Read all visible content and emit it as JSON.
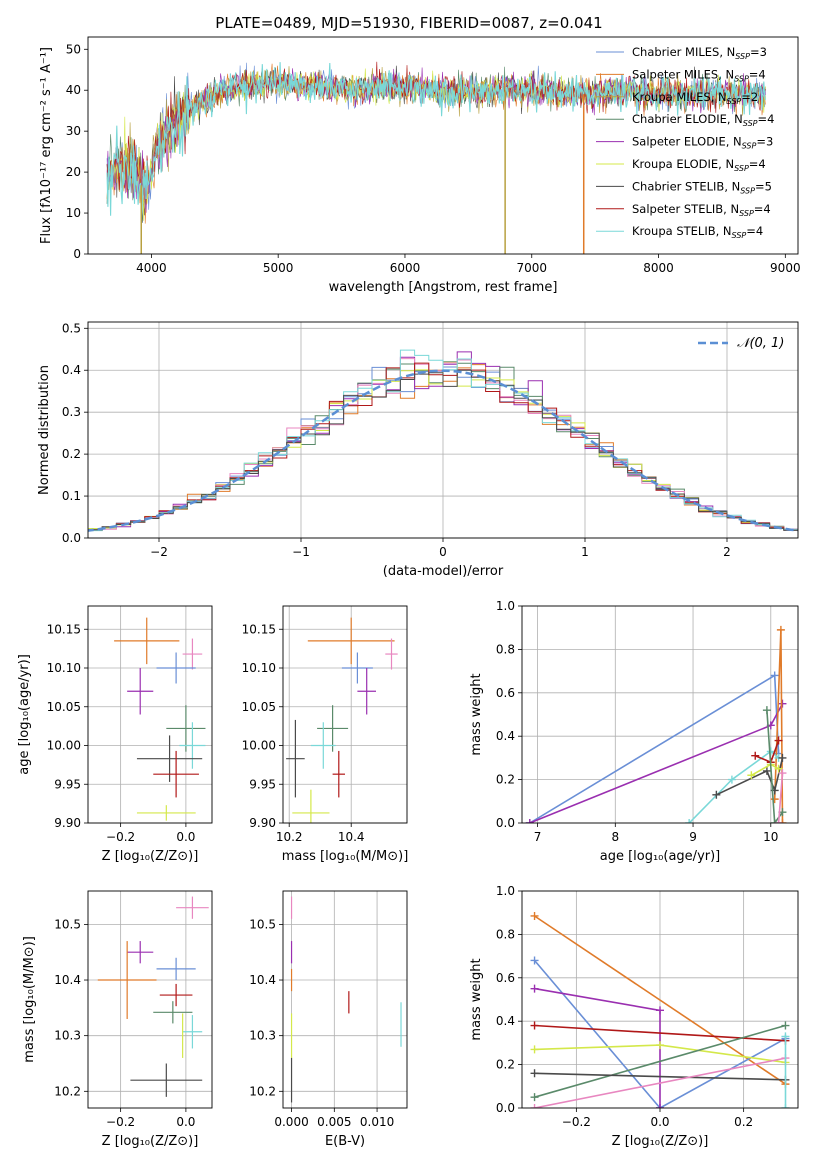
{
  "figure": {
    "title": "PLATE=0489, MJD=51930, FIBERID=0087, z=0.041"
  },
  "colors": {
    "Chabrier MILES": "#6a8fd6",
    "Salpeter MILES": "#e07b2a",
    "Kroupa MILES": "#b8a040",
    "Chabrier ELODIE": "#5a8a6a",
    "Salpeter ELODIE": "#9a2fb0",
    "Kroupa ELODIE": "#d4e84a",
    "Chabrier STELIB": "#4a4a4a",
    "Salpeter STELIB": "#b01818",
    "Kroupa STELIB": "#7ad8d8",
    "pink": "#e887c0",
    "gaussian": "#5b8fd4"
  },
  "chart_data": [
    {
      "id": "spectrum",
      "type": "line",
      "xlabel": "wavelength [Angstrom, rest frame]",
      "ylabel": "Flux [fλ10⁻¹⁷ erg cm⁻² s⁻¹ A⁻¹]",
      "xlim": [
        3500,
        9100
      ],
      "ylim": [
        0,
        53
      ],
      "xticks": [
        4000,
        5000,
        6000,
        7000,
        8000,
        9000
      ],
      "yticks": [
        0,
        10,
        20,
        30,
        40,
        50
      ],
      "legend": [
        "Chabrier MILES, N_SSP=3",
        "Salpeter MILES, N_SSP=4",
        "Kroupa MILES, N_SSP=2",
        "Chabrier ELODIE, N_SSP=4",
        "Salpeter ELODIE, N_SSP=3",
        "Kroupa ELODIE, N_SSP=4",
        "Chabrier STELIB, N_SSP=5",
        "Salpeter STELIB, N_SSP=4",
        "Kroupa STELIB, N_SSP=4"
      ],
      "legend_colors": [
        "#6a8fd6",
        "#e07b2a",
        "#b8a040",
        "#5a8a6a",
        "#9a2fb0",
        "#d4e84a",
        "#4a4a4a",
        "#b01818",
        "#7ad8d8"
      ],
      "continuum": {
        "x": [
          3650,
          3750,
          3850,
          3950,
          4050,
          4150,
          4300,
          4500,
          4700,
          5000,
          5300,
          5600,
          5900,
          6200,
          6500,
          6800,
          7100,
          7400,
          7700,
          8000,
          8300,
          8600,
          8850
        ],
        "y": [
          20,
          22,
          21,
          15,
          27,
          31,
          35,
          39,
          41,
          42,
          41,
          40,
          41,
          40,
          39.5,
          40,
          40,
          39,
          40,
          39,
          39,
          39,
          39
        ]
      },
      "drops": [
        {
          "x": 3920,
          "y_to": 0,
          "color": "#b8a040"
        },
        {
          "x": 6790,
          "y_to": 0,
          "color": "#b8a040"
        },
        {
          "x": 7410,
          "y_to": 0,
          "color": "#e07b2a"
        }
      ]
    },
    {
      "id": "residuals",
      "type": "line",
      "xlabel": "(data-model)/error",
      "ylabel": "Normed distribution",
      "xlim": [
        -2.5,
        2.5
      ],
      "ylim": [
        0,
        0.515
      ],
      "xticks": [
        -2,
        -1,
        0,
        1,
        2
      ],
      "yticks": [
        0.0,
        0.1,
        0.2,
        0.3,
        0.4,
        0.5
      ],
      "legend": [
        "𝒩(0, 1)"
      ],
      "bin_width": 0.1
    },
    {
      "id": "age_vs_Z",
      "type": "scatter",
      "xlabel": "Z [log₁₀(Z/Z⊙)]",
      "ylabel": "age  [log₁₀(age/yr)]",
      "xlim": [
        -0.3,
        0.08
      ],
      "ylim": [
        9.9,
        10.18
      ],
      "xticks": [
        -0.2,
        0.0
      ],
      "yticks": [
        9.9,
        9.95,
        10.0,
        10.05,
        10.1,
        10.15
      ],
      "points": [
        {
          "x": -0.12,
          "y": 10.135,
          "dx": 0.1,
          "dy": 0.03,
          "color": "#e07b2a"
        },
        {
          "x": 0.02,
          "y": 10.118,
          "dx": 0.03,
          "dy": 0.02,
          "color": "#e887c0"
        },
        {
          "x": -0.03,
          "y": 10.1,
          "dx": 0.06,
          "dy": 0.02,
          "color": "#6a8fd6"
        },
        {
          "x": -0.14,
          "y": 10.07,
          "dx": 0.04,
          "dy": 0.03,
          "color": "#9a2fb0"
        },
        {
          "x": 0.0,
          "y": 10.022,
          "dx": 0.06,
          "dy": 0.03,
          "color": "#5a8a6a"
        },
        {
          "x": 0.02,
          "y": 10.0,
          "dx": 0.04,
          "dy": 0.03,
          "color": "#7ad8d8"
        },
        {
          "x": -0.05,
          "y": 9.983,
          "dx": 0.1,
          "dy": 0.03,
          "color": "#4a4a4a"
        },
        {
          "x": -0.03,
          "y": 9.963,
          "dx": 0.07,
          "dy": 0.03,
          "color": "#b01818"
        },
        {
          "x": -0.06,
          "y": 9.913,
          "dx": 0.09,
          "dy": 0.01,
          "color": "#d4e84a"
        }
      ]
    },
    {
      "id": "age_vs_mass",
      "type": "scatter",
      "xlabel": "mass [log₁₀(M/M⊙)]",
      "ylabel": "",
      "xlim": [
        10.18,
        10.58
      ],
      "ylim": [
        9.9,
        10.18
      ],
      "xticks": [
        10.2,
        10.4
      ],
      "yticks": [
        9.9,
        9.95,
        10.0,
        10.05,
        10.1,
        10.15
      ],
      "points": [
        {
          "x": 10.4,
          "y": 10.135,
          "dx": 0.14,
          "dy": 0.03,
          "color": "#e07b2a"
        },
        {
          "x": 10.53,
          "y": 10.118,
          "dx": 0.02,
          "dy": 0.02,
          "color": "#e887c0"
        },
        {
          "x": 10.42,
          "y": 10.1,
          "dx": 0.05,
          "dy": 0.02,
          "color": "#6a8fd6"
        },
        {
          "x": 10.45,
          "y": 10.07,
          "dx": 0.03,
          "dy": 0.03,
          "color": "#9a2fb0"
        },
        {
          "x": 10.34,
          "y": 10.022,
          "dx": 0.05,
          "dy": 0.03,
          "color": "#5a8a6a"
        },
        {
          "x": 10.31,
          "y": 10.0,
          "dx": 0.04,
          "dy": 0.03,
          "color": "#7ad8d8"
        },
        {
          "x": 10.22,
          "y": 9.983,
          "dx": 0.03,
          "dy": 0.05,
          "color": "#4a4a4a"
        },
        {
          "x": 10.36,
          "y": 9.963,
          "dx": 0.02,
          "dy": 0.03,
          "color": "#b01818"
        },
        {
          "x": 10.27,
          "y": 9.913,
          "dx": 0.06,
          "dy": 0.03,
          "color": "#d4e84a"
        }
      ]
    },
    {
      "id": "weight_vs_age",
      "type": "line",
      "xlabel": "age  [log₁₀(age/yr)]",
      "ylabel": "mass weight",
      "xlim": [
        6.8,
        10.35
      ],
      "ylim": [
        0,
        1.0
      ],
      "xticks": [
        7,
        8,
        9,
        10
      ],
      "yticks": [
        0.0,
        0.2,
        0.4,
        0.6,
        0.8,
        1.0
      ],
      "series": [
        {
          "color": "#6a8fd6",
          "x": [
            6.9,
            10.05,
            10.1
          ],
          "y": [
            0.0,
            0.68,
            0.32
          ]
        },
        {
          "color": "#9a2fb0",
          "x": [
            6.9,
            10.0,
            10.15
          ],
          "y": [
            0.0,
            0.45,
            0.55
          ]
        },
        {
          "color": "#e07b2a",
          "x": [
            10.05,
            10.13,
            10.15
          ],
          "y": [
            0.11,
            0.89,
            0.0
          ]
        },
        {
          "color": "#7ad8d8",
          "x": [
            8.95,
            9.5,
            10.0,
            10.1
          ],
          "y": [
            0.0,
            0.2,
            0.33,
            0.3
          ]
        },
        {
          "color": "#4a4a4a",
          "x": [
            9.3,
            9.95,
            10.05,
            10.15
          ],
          "y": [
            0.13,
            0.24,
            0.15,
            0.3
          ]
        },
        {
          "color": "#b01818",
          "x": [
            9.8,
            10.0,
            10.1
          ],
          "y": [
            0.31,
            0.28,
            0.38
          ]
        },
        {
          "color": "#d4e84a",
          "x": [
            9.75,
            10.0,
            10.1
          ],
          "y": [
            0.22,
            0.27,
            0.25
          ]
        },
        {
          "color": "#5a8a6a",
          "x": [
            9.95,
            10.05,
            10.15
          ],
          "y": [
            0.52,
            0.0,
            0.05
          ]
        },
        {
          "color": "#e887c0",
          "x": [
            10.1,
            10.15
          ],
          "y": [
            0.0,
            0.23
          ]
        }
      ]
    },
    {
      "id": "mass_vs_Z",
      "type": "scatter",
      "xlabel": "Z [log₁₀(Z/Z⊙)]",
      "ylabel": "mass [log₁₀(M/M⊙)]",
      "xlim": [
        -0.3,
        0.08
      ],
      "ylim": [
        10.17,
        10.56
      ],
      "xticks": [
        -0.2,
        0.0
      ],
      "yticks": [
        10.2,
        10.3,
        10.4,
        10.5
      ],
      "points": [
        {
          "x": 0.02,
          "y": 10.53,
          "dx": 0.05,
          "dy": 0.02,
          "color": "#e887c0"
        },
        {
          "x": -0.14,
          "y": 10.45,
          "dx": 0.04,
          "dy": 0.02,
          "color": "#9a2fb0"
        },
        {
          "x": -0.03,
          "y": 10.42,
          "dx": 0.06,
          "dy": 0.02,
          "color": "#6a8fd6"
        },
        {
          "x": -0.18,
          "y": 10.4,
          "dx": 0.09,
          "dy": 0.07,
          "color": "#e07b2a"
        },
        {
          "x": -0.03,
          "y": 10.373,
          "dx": 0.05,
          "dy": 0.02,
          "color": "#b01818"
        },
        {
          "x": -0.04,
          "y": 10.342,
          "dx": 0.06,
          "dy": 0.02,
          "color": "#5a8a6a"
        },
        {
          "x": 0.02,
          "y": 10.307,
          "dx": 0.03,
          "dy": 0.03,
          "color": "#7ad8d8"
        },
        {
          "x": -0.06,
          "y": 10.22,
          "dx": 0.11,
          "dy": 0.03,
          "color": "#4a4a4a"
        },
        {
          "x": -0.01,
          "y": 10.3,
          "dx": 0.0,
          "dy": 0.04,
          "color": "#d4e84a"
        }
      ]
    },
    {
      "id": "mass_vs_EBV",
      "type": "scatter",
      "xlabel": "E(B-V)",
      "ylabel": "",
      "xlim": [
        -0.001,
        0.0135
      ],
      "ylim": [
        10.17,
        10.56
      ],
      "xticks": [
        0.0,
        0.005,
        0.01
      ],
      "xticklabels": [
        "0.000",
        "0.005",
        "0.010"
      ],
      "yticks": [
        10.2,
        10.3,
        10.4,
        10.5
      ],
      "points": [
        {
          "x": 0.0,
          "y": 10.53,
          "dx": 0.0,
          "dy": 0.02,
          "color": "#e887c0"
        },
        {
          "x": 0.0,
          "y": 10.45,
          "dx": 0.0,
          "dy": 0.02,
          "color": "#9a2fb0"
        },
        {
          "x": 0.0,
          "y": 10.4,
          "dx": 0.0,
          "dy": 0.02,
          "color": "#e07b2a"
        },
        {
          "x": 0.0,
          "y": 10.3,
          "dx": 0.0,
          "dy": 0.04,
          "color": "#d4e84a"
        },
        {
          "x": 0.0,
          "y": 10.22,
          "dx": 0.0,
          "dy": 0.04,
          "color": "#4a4a4a"
        },
        {
          "x": 0.0067,
          "y": 10.36,
          "dx": 0.0,
          "dy": 0.02,
          "color": "#b01818"
        },
        {
          "x": 0.0128,
          "y": 10.32,
          "dx": 0.0,
          "dy": 0.04,
          "color": "#7ad8d8"
        }
      ]
    },
    {
      "id": "weight_vs_Z",
      "type": "line",
      "xlabel": "Z [log₁₀(Z/Z⊙)]",
      "ylabel": "mass weight",
      "xlim": [
        -0.33,
        0.33
      ],
      "ylim": [
        0,
        1.0
      ],
      "xticks": [
        -0.2,
        0.0,
        0.2
      ],
      "yticks": [
        0.0,
        0.2,
        0.4,
        0.6,
        0.8,
        1.0
      ],
      "series": [
        {
          "color": "#e07b2a",
          "x": [
            -0.3,
            0.3
          ],
          "y": [
            0.885,
            0.11
          ]
        },
        {
          "color": "#6a8fd6",
          "x": [
            -0.3,
            0.0,
            0.3
          ],
          "y": [
            0.68,
            0.0,
            0.32
          ]
        },
        {
          "color": "#9a2fb0",
          "x": [
            -0.3,
            0.0,
            0.0
          ],
          "y": [
            0.55,
            0.45,
            0.0
          ]
        },
        {
          "color": "#b01818",
          "x": [
            -0.3,
            0.3
          ],
          "y": [
            0.38,
            0.31
          ]
        },
        {
          "color": "#d4e84a",
          "x": [
            -0.3,
            0.0,
            0.3
          ],
          "y": [
            0.27,
            0.29,
            0.21
          ]
        },
        {
          "color": "#5a8a6a",
          "x": [
            -0.3,
            0.3
          ],
          "y": [
            0.05,
            0.38
          ]
        },
        {
          "color": "#4a4a4a",
          "x": [
            -0.3,
            0.3
          ],
          "y": [
            0.16,
            0.13
          ]
        },
        {
          "color": "#e887c0",
          "x": [
            -0.3,
            0.3
          ],
          "y": [
            0.0,
            0.23
          ]
        },
        {
          "color": "#7ad8d8",
          "x": [
            0.3,
            0.3
          ],
          "y": [
            0.0,
            0.33
          ]
        }
      ]
    }
  ]
}
